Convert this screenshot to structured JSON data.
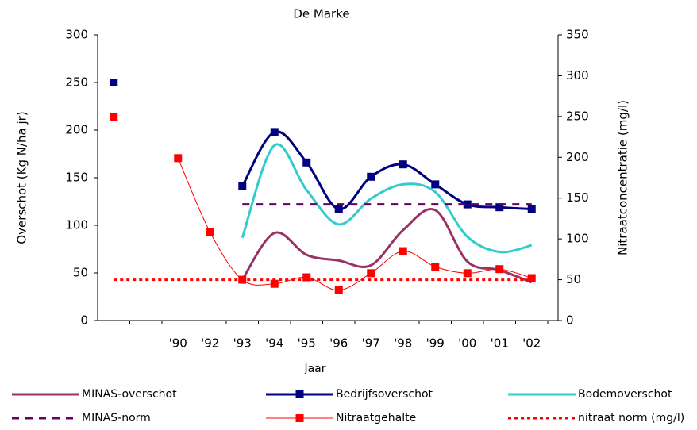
{
  "chart_data": {
    "type": "line",
    "title": "De Marke",
    "x_label": "Jaar",
    "y_label": "Overschot (Kg N/ha jr)",
    "y2_label": "Nitraatconcentratie (mg/l)",
    "categories": [
      null,
      null,
      "'90",
      "'92",
      "'93",
      "'94",
      "'95",
      "'96",
      "'97",
      "'98",
      "'99",
      "'00",
      "'01",
      "'02"
    ],
    "ylim": [
      0,
      300
    ],
    "yticks": [
      0,
      50,
      100,
      150,
      200,
      250,
      300
    ],
    "y2lim": [
      0,
      350
    ],
    "y2ticks": [
      0,
      50,
      100,
      150,
      200,
      250,
      300,
      350
    ],
    "grid": false,
    "legend": "bottom",
    "series": [
      {
        "name": "MINAS-overschot",
        "color": "#993366",
        "axis": "y",
        "smooth": true,
        "width": 3,
        "values": [
          null,
          null,
          null,
          null,
          43,
          92,
          69,
          63,
          58,
          95,
          116,
          62,
          53,
          40
        ]
      },
      {
        "name": "Bedrijfsoverschot",
        "color": "#000080",
        "axis": "y",
        "smooth": true,
        "width": 3,
        "marker": "square",
        "values": [
          250,
          null,
          null,
          null,
          141,
          198,
          166,
          117,
          151,
          164,
          143,
          122,
          119,
          117
        ]
      },
      {
        "name": "Bodemoverschot",
        "color": "#33CCCC",
        "axis": "y",
        "smooth": true,
        "width": 3,
        "values": [
          null,
          null,
          null,
          null,
          87,
          184,
          137,
          101,
          128,
          143,
          135,
          88,
          72,
          79
        ]
      },
      {
        "name": "MINAS-norm",
        "color": "#660066",
        "axis": "y",
        "dash": "dash",
        "width": 3,
        "values": [
          null,
          null,
          null,
          null,
          122,
          122,
          122,
          122,
          122,
          122,
          122,
          122,
          122,
          122
        ]
      },
      {
        "name": "Nitraatgehalte",
        "color": "#FF0000",
        "axis": "y2",
        "smooth": true,
        "width": 1,
        "marker": "square",
        "values": [
          249,
          null,
          199,
          108,
          50,
          45,
          53,
          37,
          58,
          85,
          66,
          58,
          63,
          52
        ]
      },
      {
        "name": "nitraat norm (mg/l)",
        "color": "#FF0000",
        "axis": "y2",
        "dash": "dot",
        "width": 3,
        "values": [
          50,
          50,
          50,
          50,
          50,
          50,
          50,
          50,
          50,
          50,
          50,
          50,
          50,
          50
        ]
      }
    ]
  }
}
